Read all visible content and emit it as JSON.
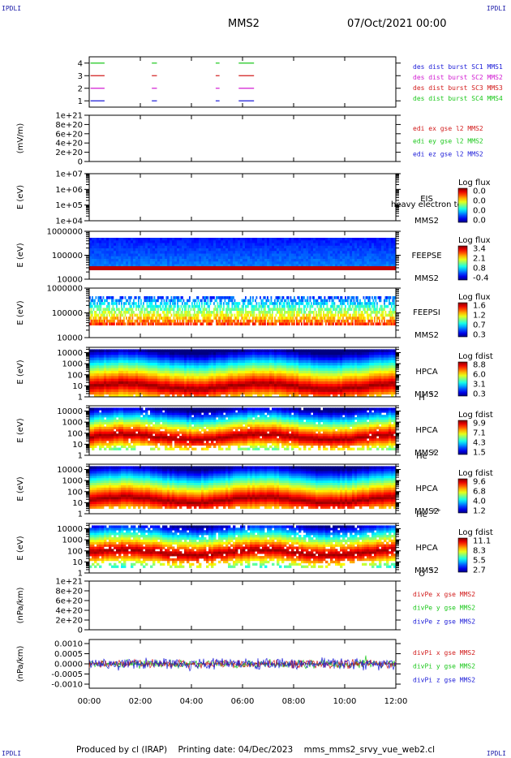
{
  "header": {
    "corner_label": "IPDLI",
    "spacecraft": "MMS2",
    "date": "07/Oct/2021 00:00"
  },
  "footer": {
    "produced_by": "Produced by cl (IRAP)",
    "printing_date": "Printing date: 04/Dec/2023",
    "script": "mms_mms2_srvy_vue_web2.cl"
  },
  "colors": {
    "mms1": "#1c1cd8",
    "mms2": "#d21cd2",
    "mms3": "#d21c1c",
    "mms4": "#1cc81c",
    "x_comp": "#d21c1c",
    "y_comp": "#1cc81c",
    "z_comp": "#1c1cd8"
  },
  "chart_data": {
    "x_ticks": [
      "00:00",
      "02:00",
      "04:00",
      "06:00",
      "08:00",
      "10:00",
      "12:00"
    ],
    "xlim_hours": [
      0,
      12
    ],
    "panels": [
      {
        "type": "line",
        "id": "burst",
        "ylabel": "",
        "yticks": [
          "4",
          "3",
          "2",
          "1"
        ],
        "ylim": [
          0.5,
          4.5
        ],
        "burst_intervals_hours": [
          [
            0.05,
            0.6
          ],
          [
            2.45,
            2.65
          ],
          [
            4.95,
            5.1
          ],
          [
            5.85,
            6.45
          ]
        ],
        "legend": [
          {
            "text": "des dist burst SC1 MMS1",
            "color": "#1c1cd8"
          },
          {
            "text": "des dist burst SC2 MMS2",
            "color": "#d21cd2"
          },
          {
            "text": "des dist burst SC3 MMS3",
            "color": "#d21c1c"
          },
          {
            "text": "des dist burst SC4 MMS4",
            "color": "#1cc81c"
          }
        ]
      },
      {
        "type": "line",
        "id": "edi",
        "ylabel": "(mV/m)",
        "yticks": [
          "1e+21",
          "8e+20",
          "6e+20",
          "4e+20",
          "2e+20",
          "0"
        ],
        "ylim": [
          0,
          1e+21
        ],
        "legend": [
          {
            "text": "edi ex gse l2 MMS2",
            "color": "#d21c1c"
          },
          {
            "text": "edi ey gse l2 MMS2",
            "color": "#1cc81c"
          },
          {
            "text": "edi ez gse l2 MMS2",
            "color": "#1c1cd8"
          }
        ]
      },
      {
        "type": "heatmap",
        "id": "eis",
        "ylabel": "E (eV)",
        "yticks": [
          "1e+07",
          "1e+06",
          "1e+05",
          "1e+04"
        ],
        "ylim": [
          10000.0,
          10000000.0
        ],
        "instrument": [
          "EIS",
          "MMS2"
        ],
        "overlay_text": "heavy electron to",
        "cbar_title": "Log flux",
        "cbar_ticks": [
          "0.0",
          "0.0",
          "0.0",
          "0.0"
        ]
      },
      {
        "type": "heatmap",
        "id": "feepse",
        "ylabel": "E (eV)",
        "yticks": [
          "1000000",
          "100000",
          "10000"
        ],
        "ylim": [
          10000.0,
          1000000.0
        ],
        "instrument": [
          "FEEPSE",
          "MMS2"
        ],
        "cbar_title": "Log flux",
        "cbar_ticks": [
          "3.4",
          "2.1",
          "0.8",
          "-0.4"
        ]
      },
      {
        "type": "heatmap",
        "id": "feepsi",
        "ylabel": "E (eV)",
        "yticks": [
          "1000000",
          "100000",
          "10000"
        ],
        "ylim": [
          10000.0,
          1000000.0
        ],
        "instrument": [
          "FEEPSI",
          "MMS2"
        ],
        "cbar_title": "Log flux",
        "cbar_ticks": [
          "1.6",
          "1.2",
          "0.7",
          "0.3"
        ]
      },
      {
        "type": "heatmap",
        "id": "hpca_h",
        "ylabel": "E (eV)",
        "yticks": [
          "10000",
          "1000",
          "100",
          "10",
          "1"
        ],
        "ylim": [
          1,
          30000
        ],
        "instrument": [
          "HPCA",
          "MMS2"
        ],
        "species": "H",
        "charge": "+",
        "cbar_title": "Log fdist",
        "cbar_ticks": [
          "8.8",
          "6.0",
          "3.1",
          "0.3"
        ]
      },
      {
        "type": "heatmap",
        "id": "hpca_he",
        "ylabel": "E (eV)",
        "yticks": [
          "10000",
          "1000",
          "100",
          "10",
          "1"
        ],
        "ylim": [
          1,
          30000
        ],
        "instrument": [
          "HPCA",
          "MMS2"
        ],
        "species": "He",
        "charge": "+",
        "cbar_title": "Log fdist",
        "cbar_ticks": [
          "9.9",
          "7.1",
          "4.3",
          "1.5"
        ]
      },
      {
        "type": "heatmap",
        "id": "hpca_he2",
        "ylabel": "E (eV)",
        "yticks": [
          "10000",
          "1000",
          "100",
          "10",
          "1"
        ],
        "ylim": [
          1,
          30000
        ],
        "instrument": [
          "HPCA",
          "MMS2"
        ],
        "species": "He",
        "charge": "++",
        "cbar_title": "Log fdist",
        "cbar_ticks": [
          "9.6",
          "6.8",
          "4.0",
          "1.2"
        ]
      },
      {
        "type": "heatmap",
        "id": "hpca_o",
        "ylabel": "E (eV)",
        "yticks": [
          "10000",
          "1000",
          "100",
          "10",
          "1"
        ],
        "ylim": [
          1,
          30000
        ],
        "instrument": [
          "HPCA",
          "MMS2"
        ],
        "species": "O",
        "charge": "+",
        "cbar_title": "Log fdist",
        "cbar_ticks": [
          "11.1",
          "8.3",
          "5.5",
          "2.7"
        ]
      },
      {
        "type": "line",
        "id": "divpe",
        "ylabel": "(nPa/km)",
        "yticks": [
          "1e+21",
          "8e+20",
          "6e+20",
          "4e+20",
          "2e+20",
          "0"
        ],
        "ylim": [
          0,
          1e+21
        ],
        "legend": [
          {
            "text": "divPe x gse MMS2",
            "color": "#d21c1c"
          },
          {
            "text": "divPe y gse MMS2",
            "color": "#1cc81c"
          },
          {
            "text": "divPe z gse MMS2",
            "color": "#1c1cd8"
          }
        ]
      },
      {
        "type": "line",
        "id": "divpi",
        "ylabel": "(nPa/km)",
        "yticks": [
          "0.0010",
          "0.0005",
          "0.0000",
          "-0.0005",
          "-0.0010"
        ],
        "ylim": [
          -0.0012,
          0.0012
        ],
        "legend": [
          {
            "text": "divPi x gse MMS2",
            "color": "#d21c1c"
          },
          {
            "text": "divPi y gse MMS2",
            "color": "#1cc81c"
          },
          {
            "text": "divPi z gse MMS2",
            "color": "#1c1cd8"
          }
        ]
      }
    ]
  }
}
